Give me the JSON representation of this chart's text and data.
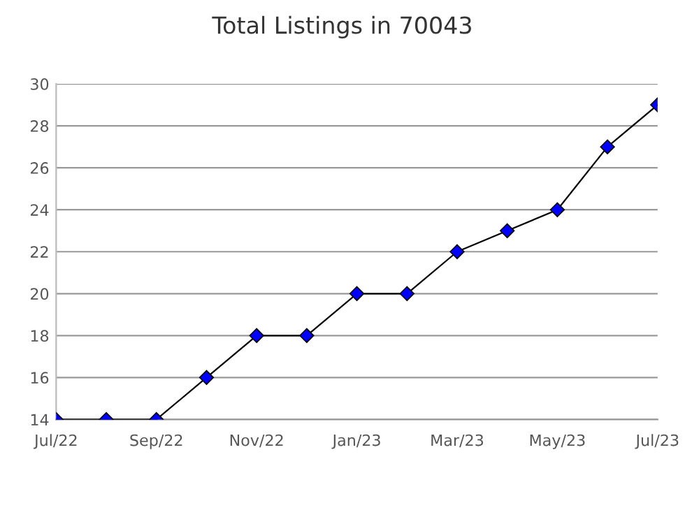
{
  "chart_data": {
    "type": "line",
    "title": "Total Listings in 70043",
    "categories": [
      "Jul/22",
      null,
      "Sep/22",
      null,
      "Nov/22",
      null,
      "Jan/23",
      null,
      "Mar/23",
      null,
      "May/23",
      null,
      "Jul/23"
    ],
    "series": [
      {
        "color": "#0000ff",
        "values": [
          14,
          14,
          14,
          16,
          18,
          18,
          20,
          20,
          22,
          23,
          24,
          27,
          29
        ]
      }
    ],
    "ylim": [
      14,
      30
    ],
    "yticks": [
      14,
      16,
      18,
      20,
      22,
      24,
      26,
      28,
      30
    ],
    "grid": "y",
    "marker": "diamond",
    "line_style": "solid"
  }
}
